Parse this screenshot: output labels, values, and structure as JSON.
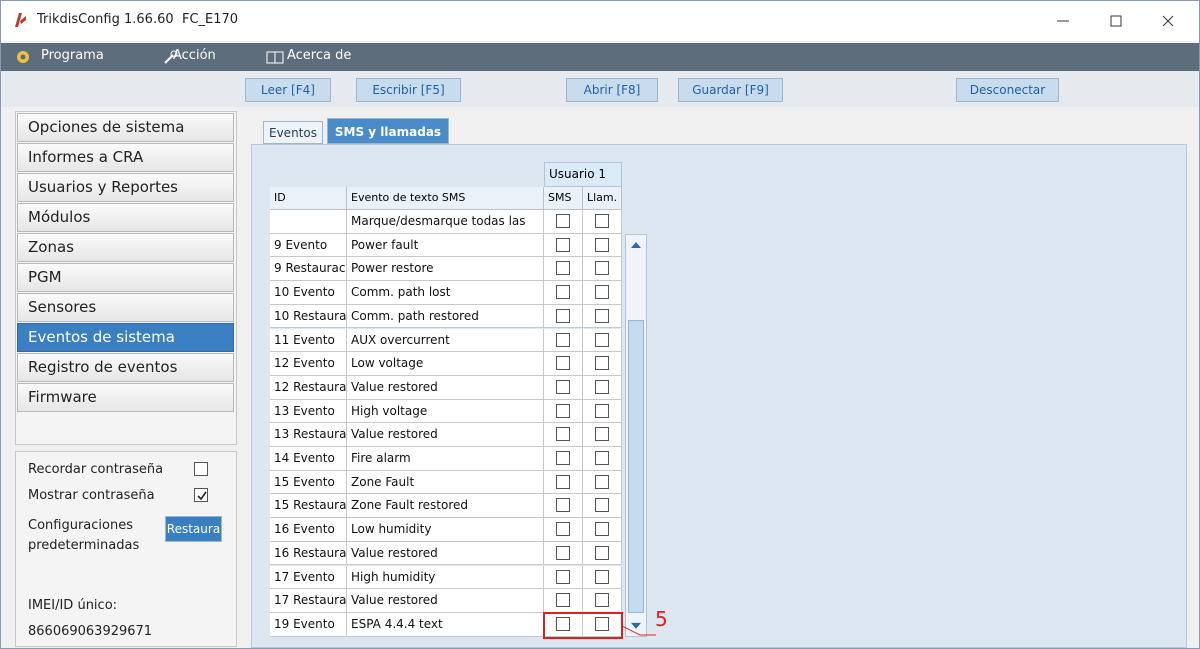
{
  "window": {
    "app_title": "TrikdisConfig 1.66.60",
    "device": "FC_E170"
  },
  "menu": [
    "Programa",
    "Acción",
    "Acerca de"
  ],
  "toolbar": {
    "read": "Leer [F4]",
    "write": "Escribir [F5]",
    "open": "Abrir [F8]",
    "save": "Guardar [F9]",
    "disconnect": "Desconectar"
  },
  "nav": [
    "Opciones de sistema",
    "Informes a CRA",
    "Usuarios y Reportes",
    "Módulos",
    "Zonas",
    "PGM",
    "Sensores",
    "Eventos de sistema",
    "Registro de eventos",
    "Firmware"
  ],
  "nav_selected": 7,
  "settings": {
    "remember_password": "Recordar contraseña",
    "show_password": "Mostrar contraseña",
    "defaults_line1": "Configuraciones",
    "defaults_line2": "predeterminadas",
    "restore_button": "Restaura",
    "imei_label": "IMEI/ID único:",
    "imei": "866069063929671"
  },
  "tabs": [
    "Eventos",
    "SMS y llamadas"
  ],
  "active_tab": 1,
  "table": {
    "group_header": "Usuario 1",
    "headers": [
      "ID",
      "Evento de texto SMS",
      "SMS",
      "Llam."
    ],
    "select_all": "Marque/desmarque todas las",
    "rows": [
      [
        "9 Evento",
        "Power fault"
      ],
      [
        "9 Restaurac",
        "Power restore"
      ],
      [
        "10 Evento",
        "Comm. path lost"
      ],
      [
        "10 Restaura",
        "Comm. path restored"
      ],
      [
        "11 Evento",
        "AUX overcurrent"
      ],
      [
        "12 Evento",
        "Low voltage"
      ],
      [
        "12 Restaura",
        "Value restored"
      ],
      [
        "13 Evento",
        "High voltage"
      ],
      [
        "13 Restaura",
        "Value restored"
      ],
      [
        "14 Evento",
        "Fire alarm"
      ],
      [
        "15 Evento",
        "Zone Fault"
      ],
      [
        "15 Restaura",
        "Zone Fault restored"
      ],
      [
        "16 Evento",
        "Low humidity"
      ],
      [
        "16 Restaura",
        "Value restored"
      ],
      [
        "17 Evento",
        "High humidity"
      ],
      [
        "17 Restaura",
        "Value restored"
      ],
      [
        "19 Evento",
        "ESPA 4.4.4 text"
      ]
    ]
  },
  "annotation": "5"
}
